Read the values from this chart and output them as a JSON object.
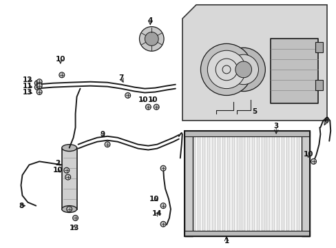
{
  "background_color": "#ffffff",
  "fig_width": 4.89,
  "fig_height": 3.6,
  "dpi": 100,
  "image_b64": ""
}
